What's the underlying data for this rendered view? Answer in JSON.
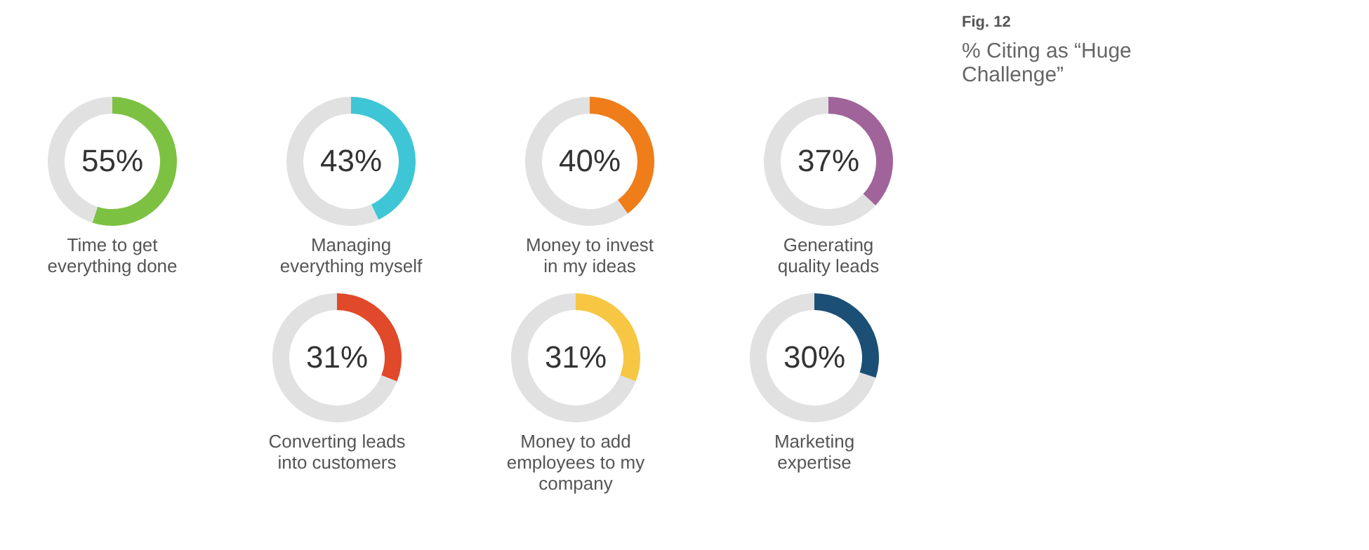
{
  "chart_data": [
    {
      "type": "donut",
      "title": "Time to get everything done",
      "categories": [
        null,
        null
      ],
      "values": [
        55,
        45
      ],
      "colors": [
        "#7dc142",
        "#e1e1e1"
      ],
      "value_labels": [
        "55%",
        null
      ]
    },
    {
      "type": "donut",
      "title": "Managing everything myself",
      "categories": [
        null,
        null
      ],
      "values": [
        43,
        57
      ],
      "colors": [
        "#3ec6d6",
        "#e1e1e1"
      ],
      "value_labels": [
        "43%",
        null
      ]
    },
    {
      "type": "donut",
      "title": "Money to invest in my ideas",
      "categories": [
        null,
        null
      ],
      "values": [
        40,
        60
      ],
      "colors": [
        "#ef7d1a",
        "#e1e1e1"
      ],
      "value_labels": [
        "40%",
        null
      ]
    },
    {
      "type": "donut",
      "title": "Generating quality leads",
      "categories": [
        null,
        null
      ],
      "values": [
        37,
        63
      ],
      "colors": [
        "#a0649b",
        "#e1e1e1"
      ],
      "value_labels": [
        "37%",
        null
      ]
    },
    {
      "type": "other",
      "title": "Fig. 12",
      "subtitle": "% Citing as “Huge Challenge”"
    },
    {
      "type": "donut",
      "title": "Converting leads into customers",
      "categories": [
        null,
        null
      ],
      "values": [
        31,
        69
      ],
      "colors": [
        "#e0492a",
        "#e1e1e1"
      ],
      "value_labels": [
        "31%",
        null
      ]
    },
    {
      "type": "donut",
      "title": "Money to add employees to my company",
      "categories": [
        null,
        null
      ],
      "values": [
        31,
        69
      ],
      "colors": [
        "#f7c744",
        "#e1e1e1"
      ],
      "value_labels": [
        "31%",
        null
      ]
    },
    {
      "type": "donut",
      "title": "Marketing expertise",
      "categories": [
        null,
        null
      ],
      "values": [
        30,
        70
      ],
      "colors": [
        "#1c4f75",
        "#e1e1e1"
      ],
      "value_labels": [
        "30%",
        null
      ]
    }
  ]
}
